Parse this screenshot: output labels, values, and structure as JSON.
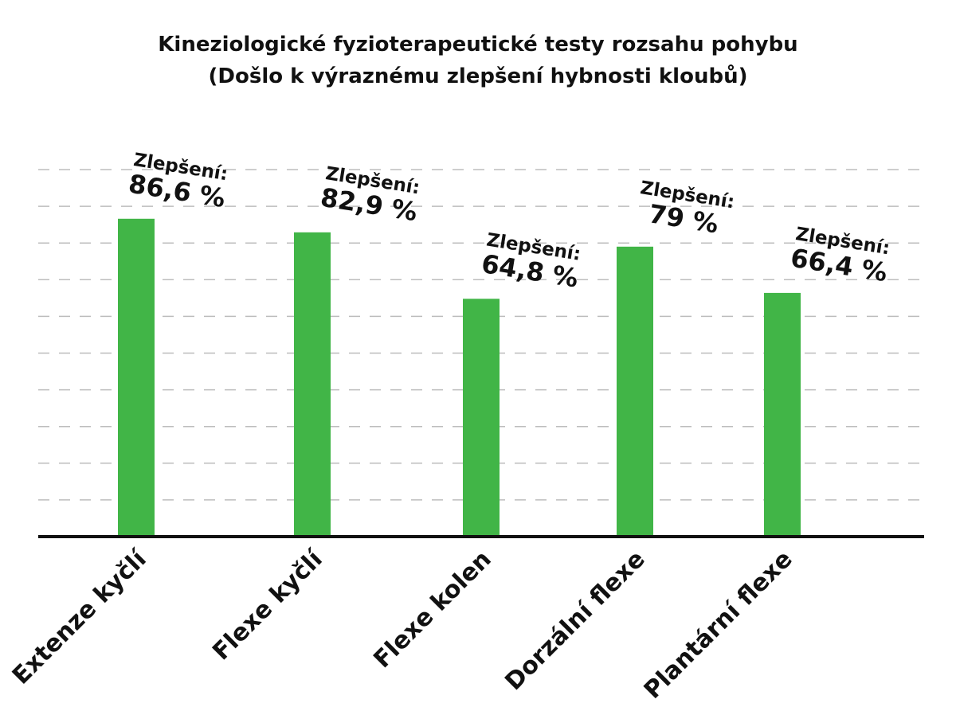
{
  "chart_data": {
    "type": "bar",
    "title": "Kineziologické fyzioterapeutické testy rozsahu pohybu",
    "subtitle": "(Došlo k výraznému zlepšení hybnosti kloubů)",
    "categories": [
      "Extenze kyčlí",
      "Flexe kyčlí",
      "Flexe kolen",
      "Dorzální flexe",
      "Plantární flexe"
    ],
    "values": [
      86.6,
      82.9,
      64.8,
      79,
      66.4
    ],
    "data_labels": [
      {
        "prefix": "Zlepšení:",
        "value": "86,6 %"
      },
      {
        "prefix": "Zlepšení:",
        "value": "82,9 %"
      },
      {
        "prefix": "Zlepšení:",
        "value": "64,8 %"
      },
      {
        "prefix": "Zlepšení:",
        "value": "79 %"
      },
      {
        "prefix": "Zlepšení:",
        "value": "66,4 %"
      }
    ],
    "ylim": [
      0,
      100
    ],
    "grid": true,
    "grid_style": "dashed",
    "bar_color": "#41b547",
    "axis_color": "#111111",
    "grid_color": "#bdbdbd"
  }
}
